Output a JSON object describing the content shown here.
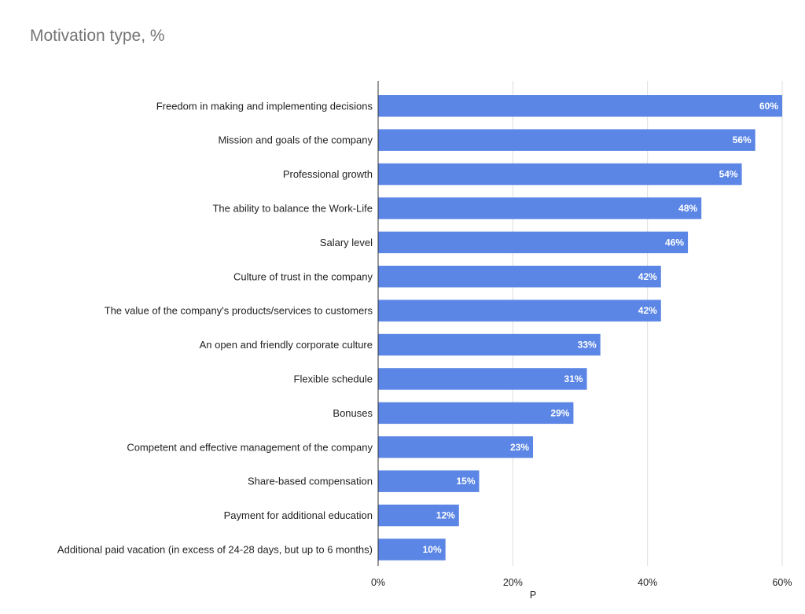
{
  "chart_data": {
    "type": "bar",
    "orientation": "horizontal",
    "title": "Motivation type, %",
    "xlabel": "P",
    "ylabel": "",
    "xlim": [
      0,
      60
    ],
    "x_ticks": [
      0,
      20,
      40,
      60
    ],
    "x_tick_labels": [
      "0%",
      "20%",
      "40%",
      "60%"
    ],
    "grid": true,
    "legend": "none",
    "bar_color": "#5b86e5",
    "categories": [
      "Freedom in making and implementing decisions",
      "Mission and goals of the company",
      "Professional growth",
      "The ability to balance the Work-Life",
      "Salary level",
      "Culture of trust in the company",
      "The value of the company's products/services to customers",
      "An open and friendly corporate culture",
      "Flexible schedule",
      "Bonuses",
      "Competent and effective management of the company",
      "Share-based compensation",
      "Payment for additional education",
      "Additional paid vacation (in excess of 24-28 days, but up to 6 months)"
    ],
    "values": [
      60,
      56,
      54,
      48,
      46,
      42,
      42,
      33,
      31,
      29,
      23,
      15,
      12,
      10
    ],
    "data_labels": [
      "60%",
      "56%",
      "54%",
      "48%",
      "46%",
      "42%",
      "42%",
      "33%",
      "31%",
      "29%",
      "23%",
      "15%",
      "12%",
      "10%"
    ]
  }
}
